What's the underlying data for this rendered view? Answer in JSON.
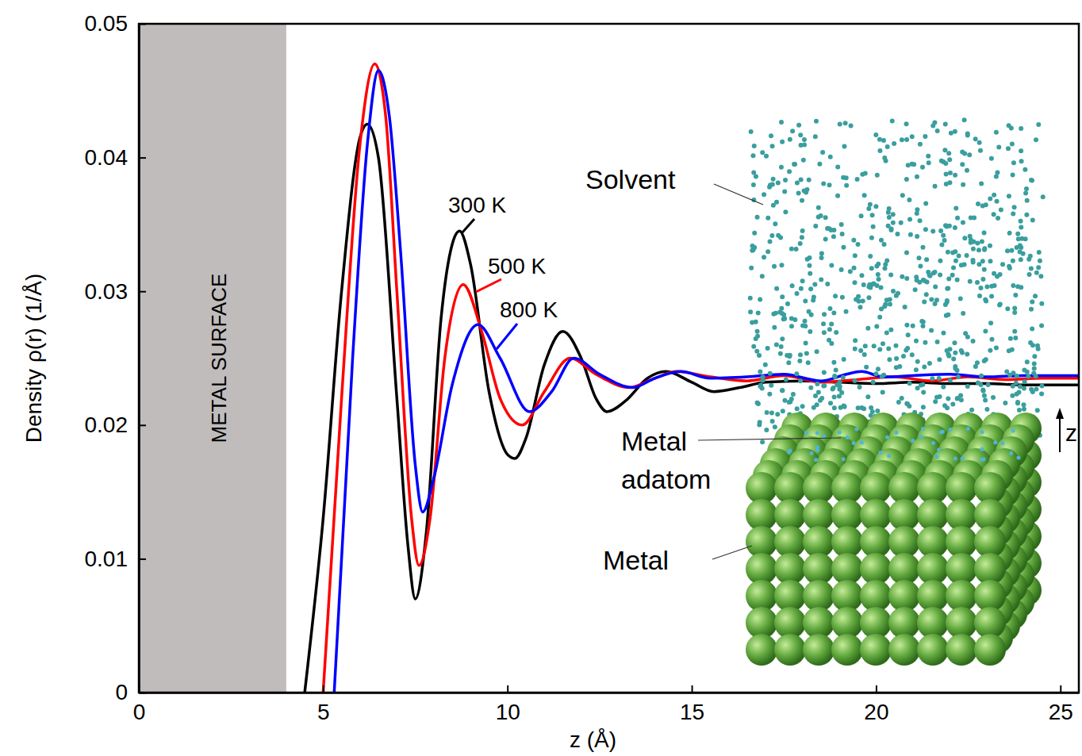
{
  "chart_data": {
    "type": "line",
    "x_label": "z (Å)",
    "y_label": "Density ρ(r) (1/Å)",
    "xlim": [
      0,
      25.5
    ],
    "ylim": [
      0,
      0.05
    ],
    "xticks": [
      0,
      5,
      10,
      15,
      20,
      25
    ],
    "yticks": [
      0,
      0.01,
      0.02,
      0.03,
      0.04,
      0.05
    ],
    "series": [
      {
        "name": "300 K",
        "color": "#000000",
        "x": [
          4.5,
          5.0,
          5.5,
          6.0,
          6.2,
          6.5,
          7.0,
          7.3,
          7.5,
          7.8,
          8.2,
          8.5,
          8.7,
          9.0,
          9.5,
          10.0,
          10.2,
          10.5,
          11.0,
          11.5,
          12.0,
          12.4,
          12.7,
          13.2,
          13.8,
          14.3,
          15.0,
          15.6,
          16.3,
          17,
          18,
          19,
          20,
          21,
          22,
          23,
          24,
          25,
          25.5
        ],
        "values": [
          0,
          0.013,
          0.03,
          0.0415,
          0.0425,
          0.04,
          0.022,
          0.011,
          0.007,
          0.012,
          0.028,
          0.0335,
          0.0345,
          0.032,
          0.0225,
          0.0178,
          0.0175,
          0.019,
          0.0245,
          0.027,
          0.025,
          0.022,
          0.021,
          0.0218,
          0.0235,
          0.024,
          0.0232,
          0.0225,
          0.0228,
          0.0232,
          0.0233,
          0.0232,
          0.0231,
          0.0232,
          0.0231,
          0.0231,
          0.023,
          0.023,
          0.023
        ]
      },
      {
        "name": "500 K",
        "color": "#ff0000",
        "x": [
          5.0,
          5.5,
          6.0,
          6.4,
          6.7,
          7.0,
          7.4,
          7.6,
          7.9,
          8.3,
          8.8,
          9.3,
          9.8,
          10.4,
          11.0,
          11.7,
          12.4,
          13.3,
          14.0,
          14.6,
          15.5,
          16.5,
          17.5,
          18.5,
          19.5,
          20.5,
          21.5,
          22.5,
          23.5,
          24.5,
          25.5
        ],
        "values": [
          0,
          0.022,
          0.041,
          0.047,
          0.043,
          0.03,
          0.013,
          0.0095,
          0.013,
          0.025,
          0.0305,
          0.027,
          0.022,
          0.02,
          0.0225,
          0.025,
          0.0238,
          0.0228,
          0.0235,
          0.024,
          0.0236,
          0.0233,
          0.0237,
          0.0232,
          0.0234,
          0.0236,
          0.0233,
          0.0236,
          0.0234,
          0.0235,
          0.0235
        ]
      },
      {
        "name": "800 K",
        "color": "#0000ff",
        "x": [
          5.3,
          5.8,
          6.2,
          6.5,
          6.8,
          7.1,
          7.5,
          7.7,
          8.0,
          8.5,
          9.2,
          9.8,
          10.6,
          11.2,
          11.8,
          12.5,
          13.4,
          14.0,
          14.7,
          15.5,
          16.5,
          17.5,
          18.5,
          19.2,
          19.6,
          20.2,
          21,
          22,
          23,
          24,
          25,
          25.5
        ],
        "values": [
          0,
          0.025,
          0.041,
          0.0465,
          0.043,
          0.033,
          0.017,
          0.0135,
          0.016,
          0.023,
          0.0275,
          0.025,
          0.021,
          0.0225,
          0.025,
          0.0238,
          0.0228,
          0.0235,
          0.024,
          0.0235,
          0.0236,
          0.0238,
          0.0233,
          0.0238,
          0.024,
          0.0236,
          0.0237,
          0.0238,
          0.0236,
          0.0237,
          0.0237,
          0.0237
        ]
      }
    ],
    "annotations": [
      {
        "text": "METAL SURFACE",
        "x_range": [
          0,
          4
        ]
      }
    ],
    "inset": {
      "labels": [
        "Solvent",
        "Metal adatom",
        "Metal",
        "z"
      ]
    }
  }
}
